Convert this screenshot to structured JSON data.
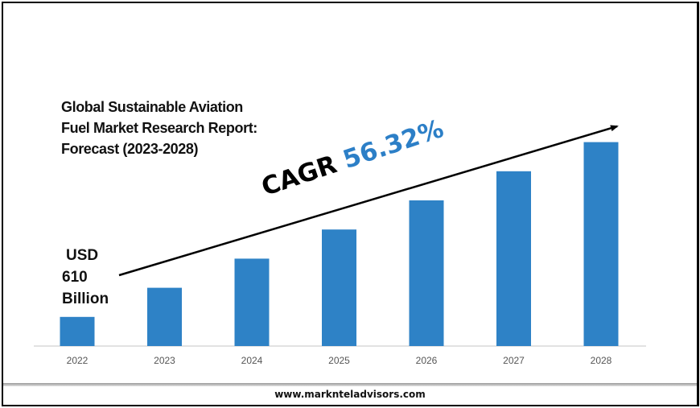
{
  "chart_data": {
    "type": "bar",
    "title": "Global Sustainable Aviation Fuel Market Research Report: Forecast (2023-2028)",
    "title_lines": [
      "Global Sustainable Aviation",
      "Fuel Market Research Report:",
      "Forecast (2023-2028)"
    ],
    "categories": [
      "2022",
      "2023",
      "2024",
      "2025",
      "2026",
      "2027",
      "2028"
    ],
    "values_relative": [
      1,
      2,
      3,
      4,
      5,
      6,
      7
    ],
    "bar_color": "#2e82c6",
    "grid": false,
    "annotations": {
      "start_value_lines": [
        "USD",
        "610",
        "Billion"
      ],
      "cagr_label": "CAGR",
      "cagr_value": "56.32%",
      "cagr_color": "#2c7fc7"
    }
  },
  "footer": {
    "website": "www.marknteladvisors.com"
  }
}
